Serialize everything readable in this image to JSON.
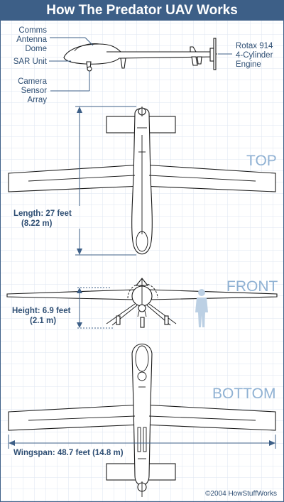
{
  "title": "How The Predator UAV Works",
  "callouts": {
    "comms_line1": "Comms",
    "comms_line2": "Antenna",
    "comms_line3": "Dome",
    "sar": "SAR Unit",
    "camera_line1": "Camera",
    "camera_line2": "Sensor",
    "camera_line3": "Array",
    "engine_line1": "Rotax 914",
    "engine_line2": "4-Cylinder",
    "engine_line3": "Engine"
  },
  "views": {
    "top": "TOP",
    "front": "FRONT",
    "bottom": "BOTTOM"
  },
  "dimensions": {
    "length_line1": "Length: 27 feet",
    "length_line2": "(8.22 m)",
    "height_line1": "Height: 6.9 feet",
    "height_line2": "(2.1 m)",
    "wingspan": "Wingspan:  48.7 feet (14.8 m)"
  },
  "copyright": "©2004 HowStuffWorks",
  "colors": {
    "title_bar": "#3d5f87",
    "label_text": "#2f4f74",
    "view_text": "#8fb1d3",
    "grid": "#dde6f0"
  }
}
